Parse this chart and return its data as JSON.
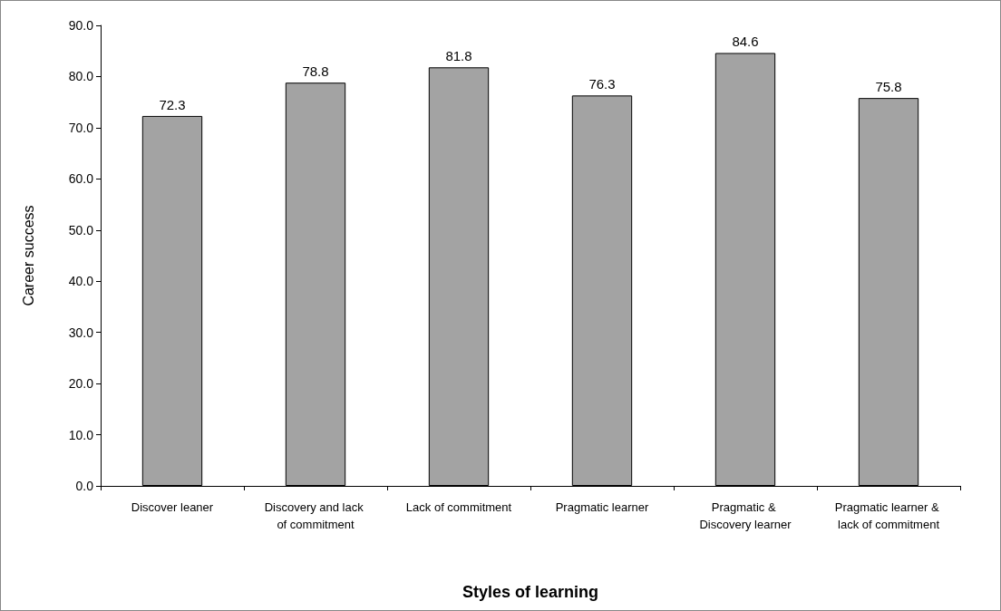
{
  "chart_data": {
    "type": "bar",
    "xlabel": "Styles of learning",
    "ylabel": "Career success",
    "categories": [
      "Discover leaner",
      "Discovery and lack of commitment",
      "Lack of commitment",
      "Pragmatic learner",
      "Pragmatic & Discovery learner",
      "Pragmatic learner & lack of commitment"
    ],
    "values": [
      72.3,
      78.8,
      81.8,
      76.3,
      84.6,
      75.8
    ],
    "color": "#a3a3a3",
    "ylim": [
      0,
      90
    ],
    "yticks": [
      {
        "value": 0,
        "label": "0.0"
      },
      {
        "value": 10,
        "label": "10.0"
      },
      {
        "value": 20,
        "label": "20.0"
      },
      {
        "value": 30,
        "label": "30.0"
      },
      {
        "value": 40,
        "label": "40.0"
      },
      {
        "value": 50,
        "label": "50.0"
      },
      {
        "value": 60,
        "label": "60.0"
      },
      {
        "value": 70,
        "label": "70.0"
      },
      {
        "value": 80,
        "label": "80.0"
      },
      {
        "value": 90,
        "label": "90.0"
      }
    ],
    "data_labels": true,
    "grid": false
  }
}
